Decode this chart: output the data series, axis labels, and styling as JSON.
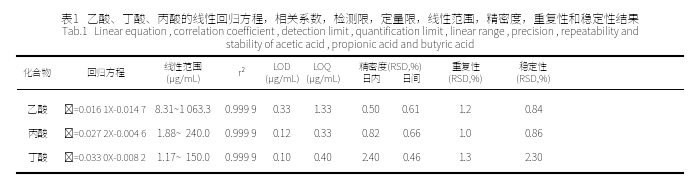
{
  "title_cn": "表1   乙酸、丁酸、丙酸的线性回归方程，相关系数，检测限，定量限，线性范围，精密度，重复性和稳定性结果",
  "title_en_line1": "Tab.1   Linear equation , correlation coefficient , detection limit , quantification limit , linear range , precision , repeatability and",
  "title_en_line2": "stability of acetic acid , propionic acid and butyric acid",
  "col_headers_top": [
    "化合物",
    "回归方程",
    "线性范围",
    "r²",
    "LOD",
    "LOQ",
    "精密度(RSD,%)",
    "日内",
    "日间",
    "重复性",
    "稳定性"
  ],
  "col_headers_bot": [
    "",
    "",
    "(μg/mL)",
    "",
    "(μg/mL)",
    "(μg/mL)",
    "",
    "",
    "",
    "(RSD,%)",
    "(RSD,%)"
  ],
  "data": [
    [
      "乙酸",
      "ŷ=0.016 1X-0.014 7",
      "8.31~1 063.3",
      "0.999 9",
      "0.33",
      "1.33",
      "0.50",
      "0.61",
      "1.2",
      "0.84"
    ],
    [
      "丙酸",
      "ŷ=0.027 2X-0.004 6",
      "1.88~  240.0",
      "0.999 9",
      "0.12",
      "0.33",
      "0.82",
      "0.66",
      "1.0",
      "0.86"
    ],
    [
      "丁酸",
      "ŷ=0.033 0X-0.008 2",
      "1.17~  150.0",
      "0.999 9",
      "0.10",
      "0.40",
      "2.40",
      "0.46",
      "1.3",
      "2.30"
    ]
  ],
  "bg_color": "#ffffff",
  "text_color": "#000000",
  "fontsize_title_cn": 8.5,
  "fontsize_title_en": 7.5,
  "fontsize_header": 7,
  "fontsize_data": 7.5,
  "thick_lw": 1.5,
  "thin_lw": 0.7
}
